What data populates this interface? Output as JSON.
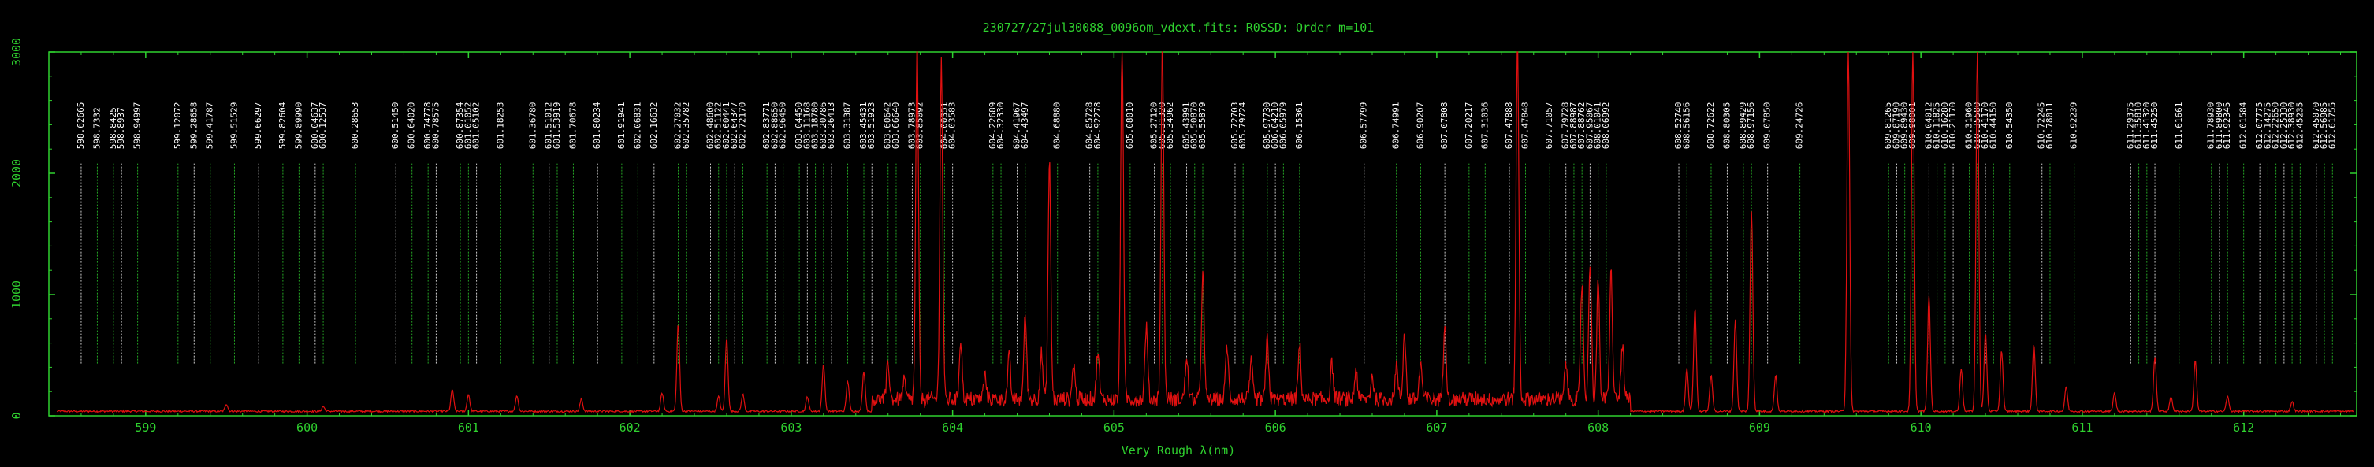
{
  "chart_data": {
    "type": "line",
    "title": "230727/27jul30088_0096om_vdext.fits: R0SSD: Order m=101",
    "xlabel": "Very Rough λ(nm)",
    "ylabel": "",
    "xlim": [
      598.4,
      612.7
    ],
    "ylim": [
      0,
      3000
    ],
    "x_ticks": [
      599,
      600,
      601,
      602,
      603,
      604,
      605,
      606,
      607,
      608,
      609,
      610,
      611,
      612
    ],
    "y_ticks": [
      0,
      1000,
      2000,
      3000
    ],
    "y_tick_labels": [
      "0",
      "1000",
      "2000",
      "3000"
    ],
    "grid": false,
    "colors": {
      "frame": "#2fd12f",
      "spectrum": "#e01010",
      "line_list_a": "#2fd12f",
      "line_list_b": "#ffffff",
      "background": "#000000"
    },
    "series": [
      {
        "name": "",
        "baseline": 30,
        "noise_region": [
          603.5,
          608.2
        ],
        "peaks": [
          [
            599.5,
            60
          ],
          [
            600.1,
            40
          ],
          [
            600.9,
            180
          ],
          [
            601.0,
            140
          ],
          [
            601.3,
            130
          ],
          [
            601.7,
            100
          ],
          [
            602.2,
            150
          ],
          [
            602.3,
            720
          ],
          [
            602.55,
            120
          ],
          [
            602.6,
            600
          ],
          [
            602.7,
            140
          ],
          [
            603.1,
            120
          ],
          [
            603.2,
            380
          ],
          [
            603.35,
            250
          ],
          [
            603.45,
            330
          ],
          [
            603.6,
            300
          ],
          [
            603.7,
            150
          ],
          [
            603.78,
            3000
          ],
          [
            603.93,
            2800
          ],
          [
            604.05,
            500
          ],
          [
            604.2,
            200
          ],
          [
            604.35,
            350
          ],
          [
            604.45,
            700
          ],
          [
            604.55,
            380
          ],
          [
            604.6,
            1950
          ],
          [
            604.75,
            300
          ],
          [
            604.9,
            400
          ],
          [
            605.05,
            3000
          ],
          [
            605.2,
            600
          ],
          [
            605.3,
            3000
          ],
          [
            605.45,
            350
          ],
          [
            605.55,
            1050
          ],
          [
            605.7,
            450
          ],
          [
            605.85,
            300
          ],
          [
            605.95,
            500
          ],
          [
            606.15,
            450
          ],
          [
            606.35,
            300
          ],
          [
            606.5,
            250
          ],
          [
            606.6,
            200
          ],
          [
            606.75,
            280
          ],
          [
            606.8,
            550
          ],
          [
            606.9,
            300
          ],
          [
            607.05,
            650
          ],
          [
            607.5,
            3000
          ],
          [
            607.8,
            300
          ],
          [
            607.9,
            950
          ],
          [
            607.95,
            1150
          ],
          [
            608.0,
            950
          ],
          [
            608.08,
            1050
          ],
          [
            608.15,
            450
          ],
          [
            608.55,
            350
          ],
          [
            608.6,
            850
          ],
          [
            608.7,
            300
          ],
          [
            608.85,
            750
          ],
          [
            608.95,
            1650
          ],
          [
            609.1,
            300
          ],
          [
            609.55,
            3000
          ],
          [
            609.95,
            3000
          ],
          [
            610.05,
            950
          ],
          [
            610.25,
            350
          ],
          [
            610.35,
            3000
          ],
          [
            610.4,
            650
          ],
          [
            610.5,
            500
          ],
          [
            610.7,
            550
          ],
          [
            610.9,
            200
          ],
          [
            611.2,
            150
          ],
          [
            611.45,
            450
          ],
          [
            611.55,
            120
          ],
          [
            611.7,
            420
          ],
          [
            611.9,
            120
          ],
          [
            612.3,
            80
          ]
        ]
      }
    ],
    "line_lists": [
      {
        "color_key": "line_list_a",
        "lines": [
          [
            598.6,
            "598.62665"
          ],
          [
            598.7,
            "598.7332"
          ],
          [
            598.8,
            "598.8425"
          ],
          [
            598.85,
            "598.8937"
          ],
          [
            598.95,
            "598.94997"
          ],
          [
            599.2,
            "599.12072"
          ],
          [
            599.3,
            "599.28658"
          ],
          [
            599.4,
            "599.41787"
          ],
          [
            599.55,
            "599.51529"
          ],
          [
            599.7,
            "599.66297"
          ],
          [
            599.85,
            "599.82604"
          ],
          [
            599.95,
            "599.89990"
          ],
          [
            600.05,
            "600.04637"
          ],
          [
            600.1,
            "600.12537"
          ],
          [
            600.3,
            "600.28653"
          ],
          [
            600.55,
            "600.51450"
          ],
          [
            600.65,
            "600.64020"
          ],
          [
            600.75,
            "600.74778"
          ],
          [
            600.8,
            "600.78575"
          ],
          [
            600.95,
            "600.87354"
          ],
          [
            601.0,
            "601.01052"
          ],
          [
            601.05,
            "601.05102"
          ],
          [
            601.2,
            "601.18253"
          ],
          [
            601.4,
            "601.36780"
          ],
          [
            601.5,
            "601.51012"
          ],
          [
            601.55,
            "601.53919"
          ],
          [
            601.65,
            "601.70678"
          ],
          [
            601.8,
            "601.80234"
          ],
          [
            601.95,
            "601.91941"
          ],
          [
            602.05,
            "602.06831"
          ],
          [
            602.15,
            "602.16632"
          ],
          [
            602.3,
            "602.27032"
          ],
          [
            602.35,
            "602.35782"
          ],
          [
            602.5,
            "602.48600"
          ],
          [
            602.55,
            "602.51122"
          ],
          [
            602.6,
            "602.60441"
          ],
          [
            602.65,
            "602.64347"
          ],
          [
            602.7,
            "602.72170"
          ],
          [
            602.85,
            "602.83771"
          ],
          [
            602.9,
            "602.88650"
          ],
          [
            602.95,
            "602.96450"
          ],
          [
            603.05,
            "603.04450"
          ],
          [
            603.1,
            "603.11168"
          ],
          [
            603.15,
            "603.18780"
          ],
          [
            603.2,
            "603.20786"
          ],
          [
            603.25,
            "603.26413"
          ],
          [
            603.35,
            "603.31387"
          ],
          [
            603.45,
            "603.45431"
          ],
          [
            603.5,
            "603.51923"
          ],
          [
            603.6,
            "603.60642"
          ],
          [
            603.65,
            "603.66640"
          ],
          [
            603.75,
            "603.78973"
          ],
          [
            603.8,
            "603.85092"
          ],
          [
            603.95,
            "604.00351"
          ],
          [
            604.0,
            "604.03583"
          ],
          [
            604.25,
            "604.22689"
          ],
          [
            604.3,
            "604.32330"
          ],
          [
            604.4,
            "604.41967"
          ],
          [
            604.45,
            "604.43497"
          ],
          [
            604.65,
            "604.68880"
          ],
          [
            604.85,
            "604.85728"
          ],
          [
            604.9,
            "604.92278"
          ],
          [
            605.1,
            "605.08010"
          ],
          [
            605.25,
            "605.27120"
          ],
          [
            605.3,
            "605.31320"
          ],
          [
            605.35,
            "605.34962"
          ],
          [
            605.45,
            "605.43991"
          ],
          [
            605.5,
            "605.50870"
          ],
          [
            605.55,
            "605.55879"
          ],
          [
            605.75,
            "605.72703"
          ],
          [
            605.8,
            "605.79724"
          ],
          [
            605.95,
            "605.97730"
          ],
          [
            606.0,
            "606.04210"
          ],
          [
            606.05,
            "606.05979"
          ],
          [
            606.15,
            "606.15361"
          ],
          [
            606.55,
            "606.57799"
          ],
          [
            606.75,
            "606.74991"
          ],
          [
            606.9,
            "606.90207"
          ],
          [
            607.05,
            "607.07808"
          ],
          [
            607.2,
            "607.20217"
          ],
          [
            607.3,
            "607.31036"
          ],
          [
            607.45,
            "607.47888"
          ],
          [
            607.55,
            "607.47848"
          ],
          [
            607.7,
            "607.71057"
          ],
          [
            607.8,
            "607.79728"
          ],
          [
            607.85,
            "607.88987"
          ],
          [
            607.9,
            "607.88762"
          ],
          [
            607.95,
            "607.95067"
          ],
          [
            608.0,
            "608.01041"
          ],
          [
            608.05,
            "608.06992"
          ],
          [
            608.5,
            "608.52740"
          ],
          [
            608.55,
            "608.56156"
          ],
          [
            608.7,
            "608.72622"
          ],
          [
            608.8,
            "608.80305"
          ],
          [
            608.9,
            "608.89429"
          ],
          [
            608.95,
            "608.97156"
          ],
          [
            609.05,
            "609.07850"
          ],
          [
            609.25,
            "609.24726"
          ],
          [
            609.8,
            "609.81265"
          ],
          [
            609.85,
            "609.87190"
          ],
          [
            609.9,
            "609.89430"
          ],
          [
            609.95,
            "609.98001"
          ],
          [
            610.05,
            "610.04012"
          ],
          [
            610.1,
            "610.11825"
          ],
          [
            610.15,
            "610.16280"
          ],
          [
            610.2,
            "610.21170"
          ],
          [
            610.3,
            "610.31960"
          ],
          [
            610.35,
            "610.35580"
          ],
          [
            610.4,
            "610.41170"
          ],
          [
            610.45,
            "610.44150"
          ],
          [
            610.55,
            "610.54350"
          ],
          [
            610.75,
            "610.72245"
          ],
          [
            610.8,
            "610.78011"
          ],
          [
            610.95,
            "610.92239"
          ],
          [
            611.3,
            "611.29375"
          ],
          [
            611.35,
            "611.35810"
          ],
          [
            611.4,
            "611.41320"
          ],
          [
            611.45,
            "611.45250"
          ],
          [
            611.6,
            "611.61661"
          ],
          [
            611.8,
            "611.78930"
          ],
          [
            611.85,
            "611.89800"
          ],
          [
            611.9,
            "611.92345"
          ],
          [
            612.0,
            "612.01584"
          ],
          [
            612.1,
            "612.07775"
          ],
          [
            612.15,
            "612.14275"
          ],
          [
            612.2,
            "612.22650"
          ],
          [
            612.25,
            "612.25330"
          ],
          [
            612.3,
            "612.38930"
          ],
          [
            612.35,
            "612.45235"
          ],
          [
            612.45,
            "612.45070"
          ],
          [
            612.5,
            "612.56985"
          ],
          [
            612.55,
            "612.61755"
          ]
        ]
      }
    ]
  }
}
